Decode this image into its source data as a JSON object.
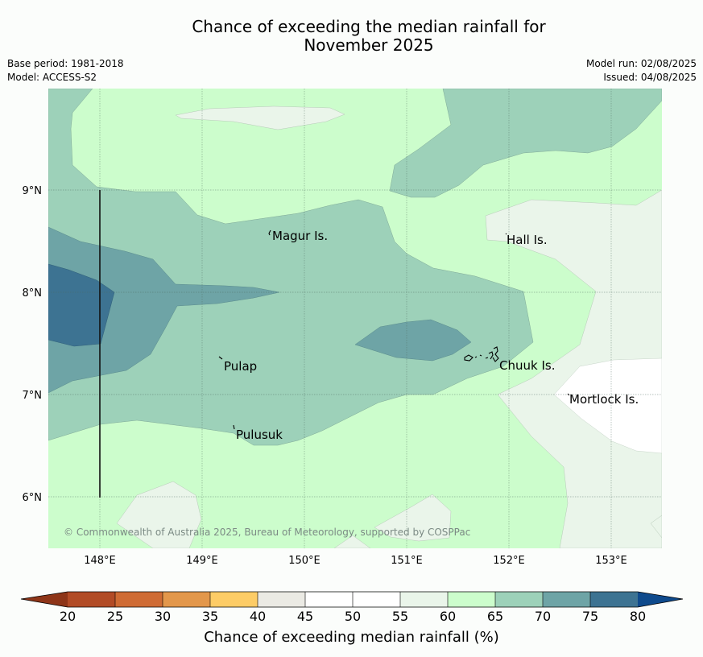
{
  "title_line1": "Chance of exceeding the median rainfall for",
  "title_line2": "November 2025",
  "base_period": "Base period: 1981-2018",
  "model": "Model: ACCESS-S2",
  "model_run": "Model run: 02/08/2025",
  "issued": "Issued: 04/08/2025",
  "copyright": "© Commonwealth of Australia 2025, Bureau of Meteorology, supported by COSPPac",
  "map": {
    "lon_ticks": [
      "148°E",
      "149°E",
      "150°E",
      "151°E",
      "152°E",
      "153°E"
    ],
    "lat_ticks": [
      "9°N",
      "8°N",
      "7°N",
      "6°N"
    ],
    "places": [
      {
        "name": "Magur Is."
      },
      {
        "name": "Hall Is."
      },
      {
        "name": "Pulap"
      },
      {
        "name": "Chuuk Is."
      },
      {
        "name": "Mortlock Is."
      },
      {
        "name": "Pulusuk"
      }
    ]
  },
  "colorbar": {
    "title": "Chance of exceeding median rainfall (%)",
    "ticks": [
      "20",
      "25",
      "30",
      "35",
      "40",
      "45",
      "50",
      "55",
      "60",
      "65",
      "70",
      "75",
      "80"
    ],
    "colors": {
      "below_20": "#8e3518",
      "20_25": "#b24b26",
      "25_30": "#cf6b34",
      "30_35": "#e3974b",
      "35_40": "#fdcc66",
      "40_45": "#ebeae4",
      "45_50": "#ffffff",
      "50_55": "#ffffff",
      "55_60": "#eaf5ea",
      "60_65": "#ccfdcc",
      "65_70": "#9dd1b9",
      "70_75": "#6ea4a6",
      "75_80": "#3d7392",
      "above_80": "#0e4a8c"
    }
  }
}
